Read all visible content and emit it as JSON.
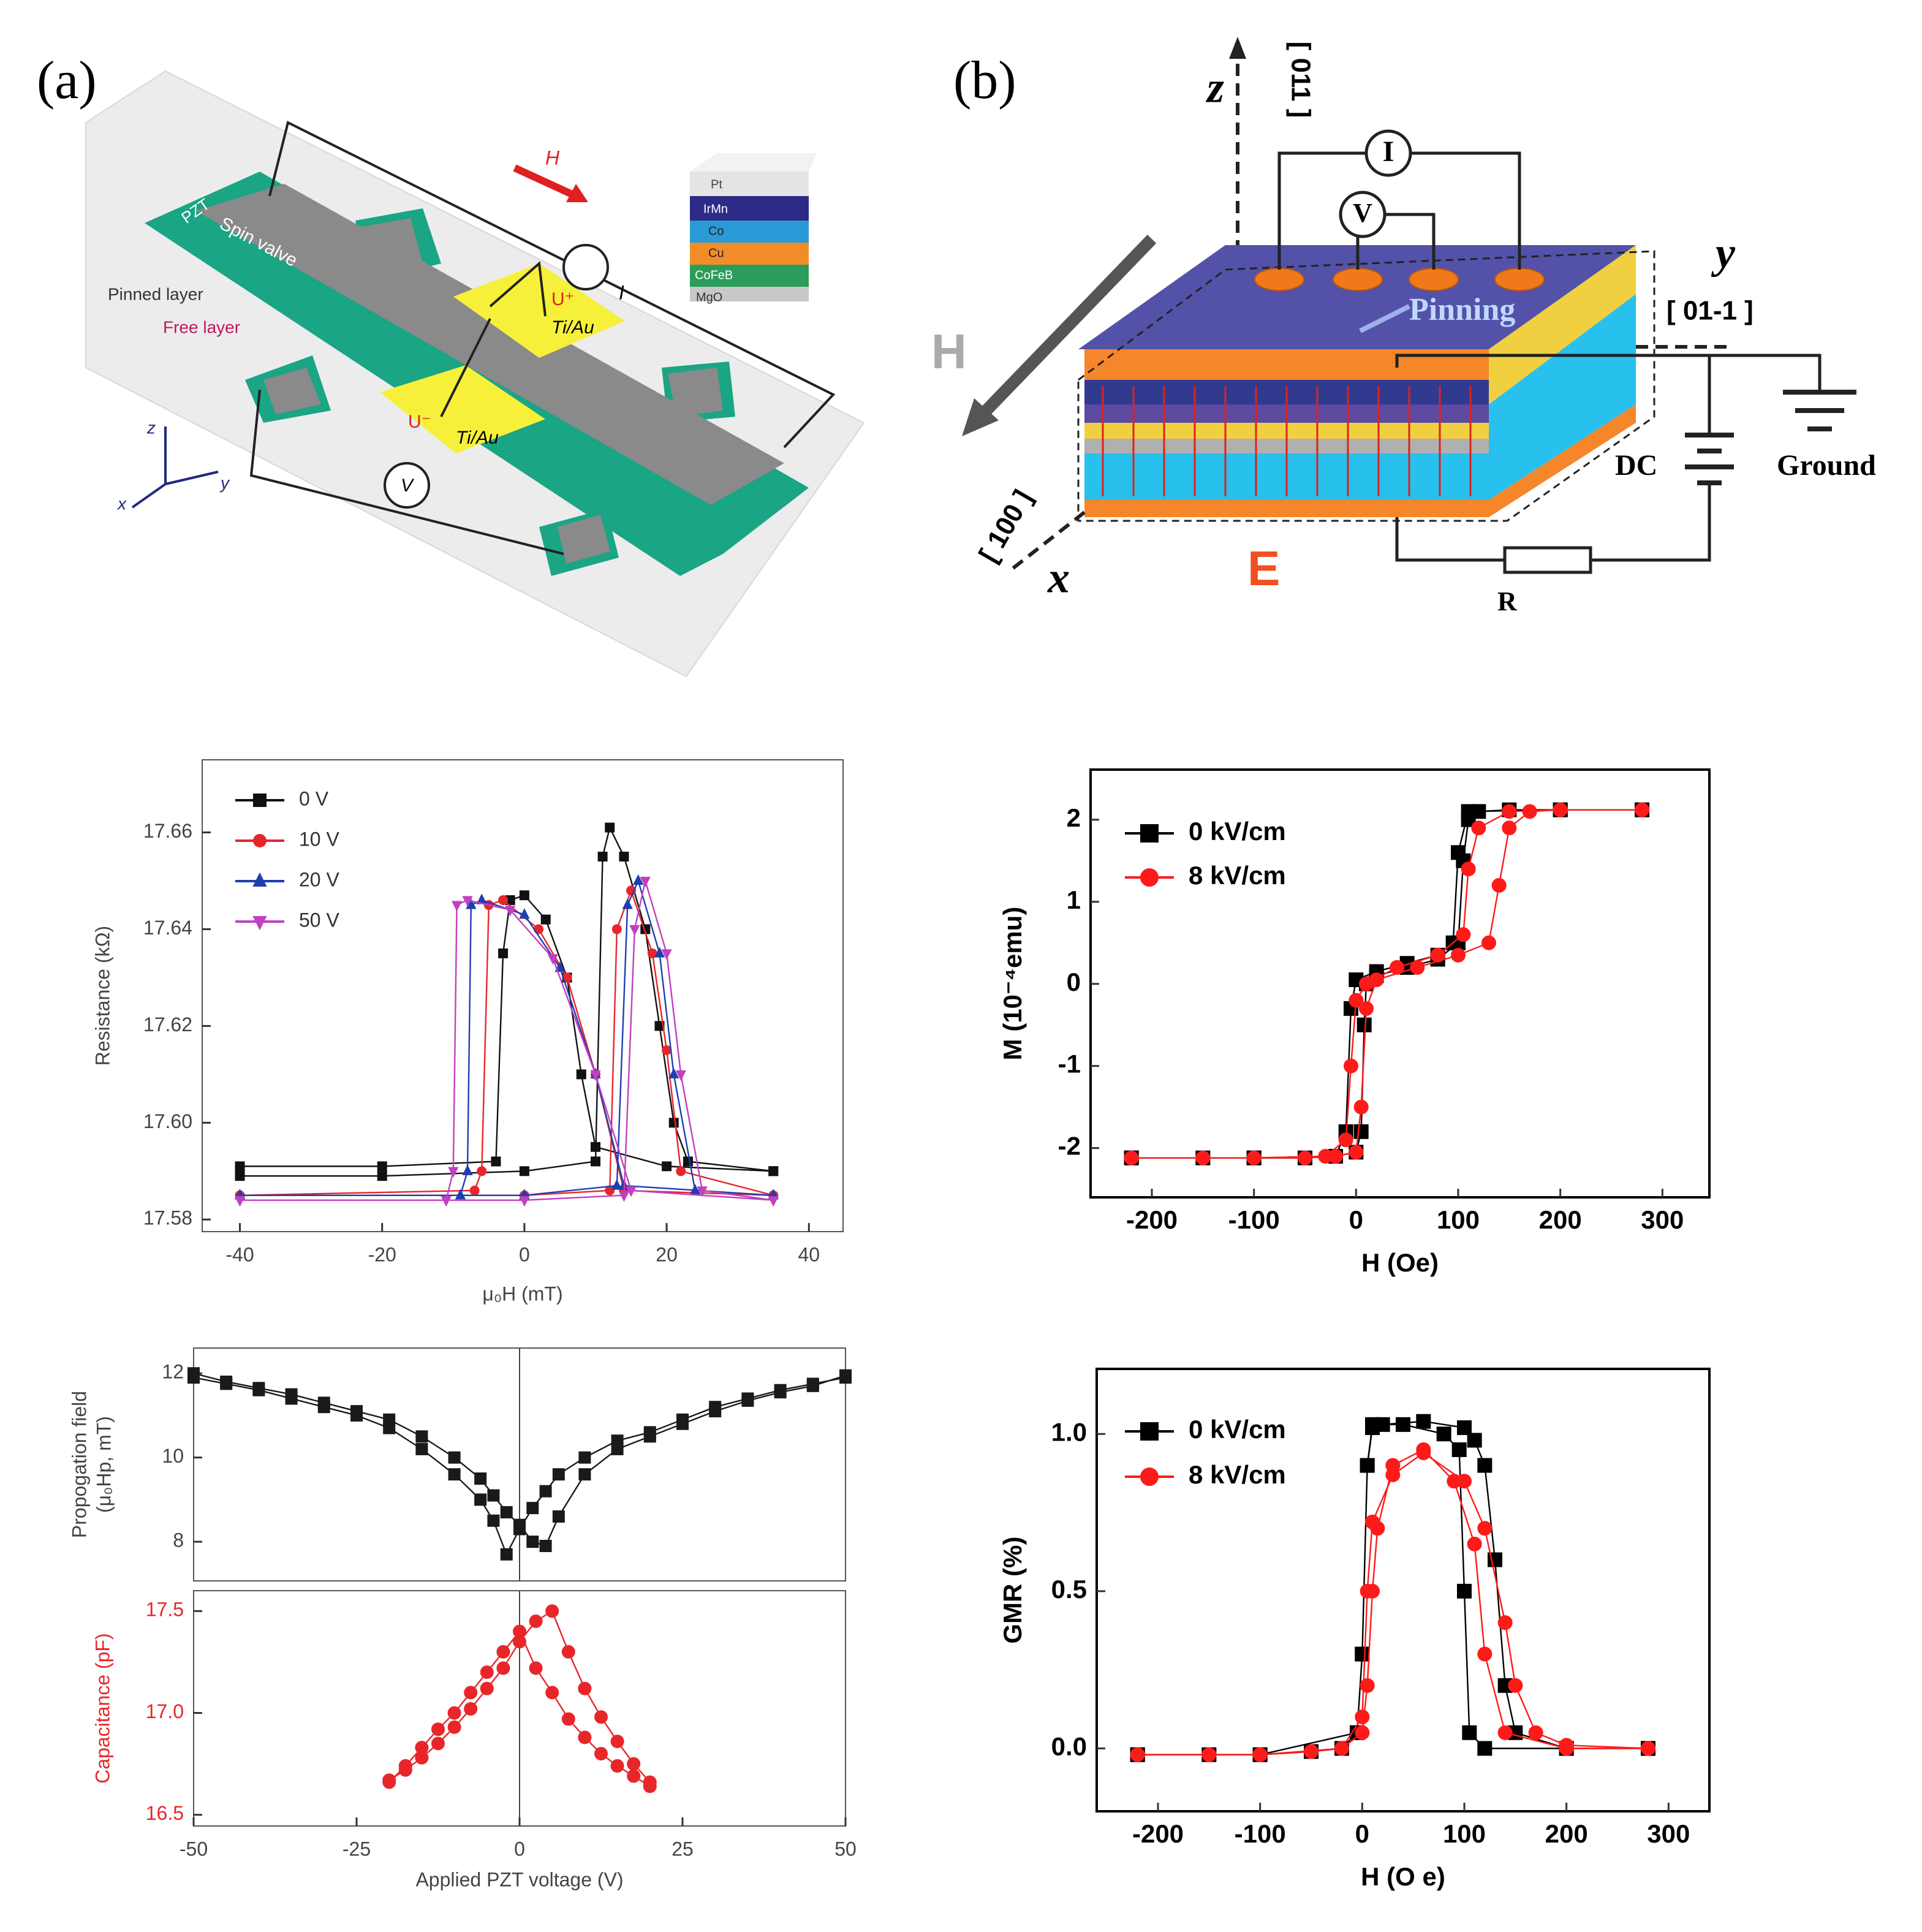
{
  "panels": {
    "a": "(a)",
    "b": "(b)"
  },
  "diagram_a": {
    "pzt": "PZT",
    "spin_valve": "Spin valve",
    "pinned_layer": "Pinned layer",
    "free_layer": "Free layer",
    "field": "H",
    "current": "I",
    "u_plus": "U⁺",
    "u_minus": "U⁻",
    "pad1": "Ti/Au",
    "pad2": "Ti/Au",
    "voltmeter": "V",
    "stack": [
      "Pt",
      "IrMn",
      "Co",
      "Cu",
      "CoFeB",
      "MgO"
    ],
    "axes": [
      "z",
      "x",
      "y"
    ]
  },
  "diagram_b": {
    "z": "z",
    "z_dir": "[ 011 ]",
    "current": "I",
    "voltmeter": "V",
    "pinning": "Pinning",
    "y": "y",
    "y_dir": "[ 01-1 ]",
    "field": "H",
    "dc": "DC",
    "ground": "Ground",
    "x_dir": "[ 100 ]",
    "x": "x",
    "efield": "E",
    "resistor": "R"
  },
  "chart_data": [
    {
      "type": "line",
      "ylabel": "Resistance (kΩ)",
      "xlabel": "μ₀H (mT)",
      "legend": "upper left",
      "xlim": [
        -45.3,
        44.8
      ],
      "xticks": [
        -40,
        -20,
        0,
        20,
        40
      ],
      "ylim": [
        17.5775,
        17.675
      ],
      "yticks": [
        17.58,
        {
          "value": 17.6,
          "label": "17.60"
        },
        17.62,
        17.64,
        17.66
      ],
      "series": [
        {
          "name": "0 V",
          "color": "#111111",
          "marker": "square",
          "x": [
            -40,
            -20,
            0,
            10,
            11,
            12,
            14,
            17,
            19,
            21,
            23,
            35,
            35,
            20,
            10,
            8,
            6,
            3,
            0,
            -2,
            -3,
            -4,
            -20,
            -40
          ],
          "values": [
            17.589,
            17.589,
            17.59,
            17.592,
            17.655,
            17.661,
            17.655,
            17.64,
            17.62,
            17.6,
            17.592,
            17.59,
            17.59,
            17.591,
            17.595,
            17.61,
            17.63,
            17.642,
            17.647,
            17.646,
            17.635,
            17.592,
            17.591,
            17.591
          ]
        },
        {
          "name": "10 V",
          "color": "#e8262a",
          "marker": "circle",
          "x": [
            -40,
            0,
            12,
            13,
            15,
            18,
            20,
            22,
            35,
            35,
            14,
            10,
            6,
            2,
            -3,
            -5,
            -6,
            -7,
            -40
          ],
          "values": [
            17.585,
            17.585,
            17.586,
            17.64,
            17.648,
            17.635,
            17.615,
            17.59,
            17.585,
            17.585,
            17.586,
            17.61,
            17.63,
            17.64,
            17.646,
            17.645,
            17.59,
            17.586,
            17.585
          ]
        },
        {
          "name": "20 V",
          "color": "#1f3fb0",
          "marker": "triangle-up",
          "x": [
            -40,
            0,
            13,
            14.5,
            16,
            19,
            21,
            24,
            35,
            35,
            14,
            10,
            5,
            0,
            -6,
            -7.5,
            -8,
            -9,
            -40
          ],
          "values": [
            17.585,
            17.585,
            17.587,
            17.645,
            17.65,
            17.635,
            17.61,
            17.586,
            17.585,
            17.585,
            17.587,
            17.61,
            17.632,
            17.643,
            17.646,
            17.645,
            17.59,
            17.585,
            17.585
          ]
        },
        {
          "name": "50 V",
          "color": "#c040c0",
          "marker": "triangle-down",
          "x": [
            -40,
            0,
            14,
            15.5,
            17,
            20,
            22,
            25,
            35,
            35,
            15,
            10,
            4,
            -2,
            -8,
            -9.5,
            -10,
            -11,
            -40
          ],
          "values": [
            17.584,
            17.584,
            17.585,
            17.64,
            17.65,
            17.635,
            17.61,
            17.586,
            17.584,
            17.584,
            17.586,
            17.61,
            17.634,
            17.644,
            17.646,
            17.645,
            17.59,
            17.584,
            17.584
          ]
        }
      ]
    },
    {
      "type": "line",
      "ylabel": [
        "Propogation field",
        "(μ₀Hp, mT)"
      ],
      "xlim": [
        -50,
        50
      ],
      "xzero_line": true,
      "ylim": [
        7.07,
        12.6
      ],
      "yticks": [
        8,
        10,
        12
      ],
      "series": [
        {
          "color": "#1a1a1a",
          "marker": "square",
          "x": [
            -50,
            -45,
            -40,
            -35,
            -30,
            -25,
            -20,
            -15,
            -10,
            -6,
            -4,
            -2,
            0,
            2,
            4,
            6,
            10,
            15,
            20,
            25,
            30,
            35,
            40,
            45,
            50
          ],
          "values": [
            11.9,
            11.75,
            11.6,
            11.4,
            11.2,
            11.0,
            10.7,
            10.2,
            9.6,
            9.0,
            8.5,
            7.7,
            8.3,
            8.8,
            9.2,
            9.6,
            10.0,
            10.4,
            10.6,
            10.9,
            11.2,
            11.4,
            11.6,
            11.75,
            11.9
          ]
        },
        {
          "color": "#1a1a1a",
          "marker": "square",
          "x": [
            -50,
            -45,
            -40,
            -35,
            -30,
            -25,
            -20,
            -15,
            -10,
            -6,
            -4,
            -2,
            0,
            2,
            4,
            6,
            10,
            15,
            20,
            25,
            30,
            35,
            40,
            45,
            50
          ],
          "values": [
            12.0,
            11.8,
            11.65,
            11.5,
            11.3,
            11.1,
            10.9,
            10.5,
            10.0,
            9.5,
            9.1,
            8.7,
            8.4,
            8.0,
            7.9,
            8.6,
            9.6,
            10.2,
            10.5,
            10.8,
            11.1,
            11.35,
            11.55,
            11.7,
            11.95
          ]
        }
      ]
    },
    {
      "type": "line",
      "ylabel": "Capacitance (pF)",
      "label_color": "#e8262a",
      "xlabel": "Applied PZT voltage (V)",
      "xzero_line": true,
      "xlim": [
        -50,
        50
      ],
      "xticks": [
        -50,
        -25,
        0,
        25,
        50
      ],
      "ylim": [
        16.445,
        17.6
      ],
      "yticks": [
        16.5,
        {
          "value": 17,
          "label": "17.0"
        },
        17.5
      ],
      "series": [
        {
          "color": "#e8262a",
          "marker": "circle",
          "x": [
            -20,
            -17.5,
            -15,
            -12.5,
            -10,
            -7.5,
            -5,
            -2.5,
            0,
            2.5,
            5,
            7.5,
            10,
            12.5,
            15,
            17.5,
            20
          ],
          "values": [
            16.67,
            16.72,
            16.78,
            16.85,
            16.93,
            17.02,
            17.12,
            17.22,
            17.35,
            17.45,
            17.5,
            17.3,
            17.12,
            16.98,
            16.86,
            16.75,
            16.66
          ]
        },
        {
          "color": "#e8262a",
          "marker": "circle",
          "x": [
            -20,
            -17.5,
            -15,
            -12.5,
            -10,
            -7.5,
            -5,
            -2.5,
            0,
            2.5,
            5,
            7.5,
            10,
            12.5,
            15,
            17.5,
            20
          ],
          "values": [
            16.66,
            16.74,
            16.83,
            16.92,
            17.0,
            17.1,
            17.2,
            17.3,
            17.4,
            17.22,
            17.1,
            16.97,
            16.88,
            16.8,
            16.74,
            16.69,
            16.64
          ]
        }
      ]
    },
    {
      "type": "line",
      "ylabel": "M (10⁻⁴emu)",
      "xlabel": "H (Oe)",
      "legend": "upper left",
      "xlim": [
        -260,
        346
      ],
      "xticks": [
        -200,
        -100,
        0,
        100,
        200,
        300
      ],
      "ylim": [
        -2.6,
        2.61
      ],
      "yticks": [
        -2,
        -1,
        0,
        1,
        2
      ],
      "series": [
        {
          "name": "0 kV/cm",
          "color": "#000000",
          "marker": "square",
          "x": [
            -220,
            -150,
            -100,
            -50,
            -20,
            0,
            5,
            8,
            10,
            20,
            50,
            80,
            100,
            105,
            110,
            120,
            150,
            200,
            280,
            280,
            200,
            110,
            100,
            95,
            80,
            50,
            20,
            0,
            -5,
            -10,
            -20,
            -100,
            -220
          ],
          "values": [
            -2.12,
            -2.12,
            -2.12,
            -2.12,
            -2.1,
            -2.05,
            -1.8,
            -0.5,
            0,
            0.1,
            0.2,
            0.3,
            0.5,
            1.5,
            2.0,
            2.1,
            2.12,
            2.12,
            2.12,
            2.12,
            2.12,
            2.1,
            1.6,
            0.5,
            0.35,
            0.25,
            0.15,
            0.05,
            -0.3,
            -1.8,
            -2.1,
            -2.12,
            -2.12
          ]
        },
        {
          "name": "8 kV/cm",
          "color": "#ff1a1a",
          "marker": "circle",
          "x": [
            -220,
            -150,
            -100,
            -50,
            -20,
            0,
            5,
            10,
            20,
            60,
            100,
            130,
            140,
            150,
            170,
            200,
            280,
            280,
            200,
            150,
            120,
            110,
            105,
            80,
            40,
            10,
            0,
            -5,
            -10,
            -30,
            -100,
            -220
          ],
          "values": [
            -2.12,
            -2.12,
            -2.12,
            -2.12,
            -2.1,
            -2.05,
            -1.5,
            -0.3,
            0.05,
            0.2,
            0.35,
            0.5,
            1.2,
            1.9,
            2.1,
            2.12,
            2.12,
            2.12,
            2.12,
            2.1,
            1.9,
            1.4,
            0.6,
            0.35,
            0.2,
            0.0,
            -0.2,
            -1.0,
            -1.9,
            -2.1,
            -2.12,
            -2.12
          ]
        }
      ]
    },
    {
      "type": "line",
      "ylabel": "GMR (%)",
      "xlabel": "H (O e)",
      "legend": "upper left",
      "xlim": [
        -260,
        340
      ],
      "xticks": [
        -200,
        -100,
        0,
        100,
        200,
        300
      ],
      "ylim": [
        -0.2,
        1.207
      ],
      "yticks": [
        {
          "value": 0,
          "label": "0.0"
        },
        0.5,
        {
          "value": 1,
          "label": "1.0"
        }
      ],
      "series": [
        {
          "name": "0 kV/cm",
          "color": "#000000",
          "marker": "square",
          "x": [
            -220,
            -150,
            -100,
            -50,
            -20,
            -5,
            0,
            5,
            10,
            20,
            60,
            100,
            110,
            120,
            130,
            140,
            150,
            200,
            280,
            280,
            200,
            120,
            105,
            100,
            95,
            80,
            40,
            10,
            5,
            0,
            -5,
            -100,
            -220
          ],
          "values": [
            -0.02,
            -0.02,
            -0.02,
            -0.01,
            0.0,
            0.05,
            0.3,
            0.9,
            1.02,
            1.03,
            1.04,
            1.02,
            0.98,
            0.9,
            0.6,
            0.2,
            0.05,
            0.0,
            0.0,
            0.0,
            0.0,
            0.0,
            0.05,
            0.5,
            0.95,
            1.0,
            1.03,
            1.03,
            0.9,
            0.3,
            0.05,
            -0.02,
            -0.02
          ]
        },
        {
          "name": "8 kV/cm",
          "color": "#ff1a1a",
          "marker": "circle",
          "x": [
            -220,
            -150,
            -100,
            -50,
            -20,
            0,
            5,
            10,
            30,
            60,
            100,
            120,
            140,
            150,
            170,
            200,
            280,
            280,
            200,
            140,
            120,
            110,
            90,
            60,
            30,
            15,
            10,
            5,
            0,
            -20,
            -100,
            -220
          ],
          "values": [
            -0.02,
            -0.02,
            -0.02,
            -0.01,
            0.0,
            0.1,
            0.5,
            0.72,
            0.87,
            0.94,
            0.85,
            0.7,
            0.4,
            0.2,
            0.05,
            0.01,
            0.0,
            0.0,
            0.0,
            0.05,
            0.3,
            0.65,
            0.85,
            0.95,
            0.9,
            0.7,
            0.5,
            0.2,
            0.05,
            0.0,
            -0.02,
            -0.02
          ]
        }
      ]
    }
  ]
}
